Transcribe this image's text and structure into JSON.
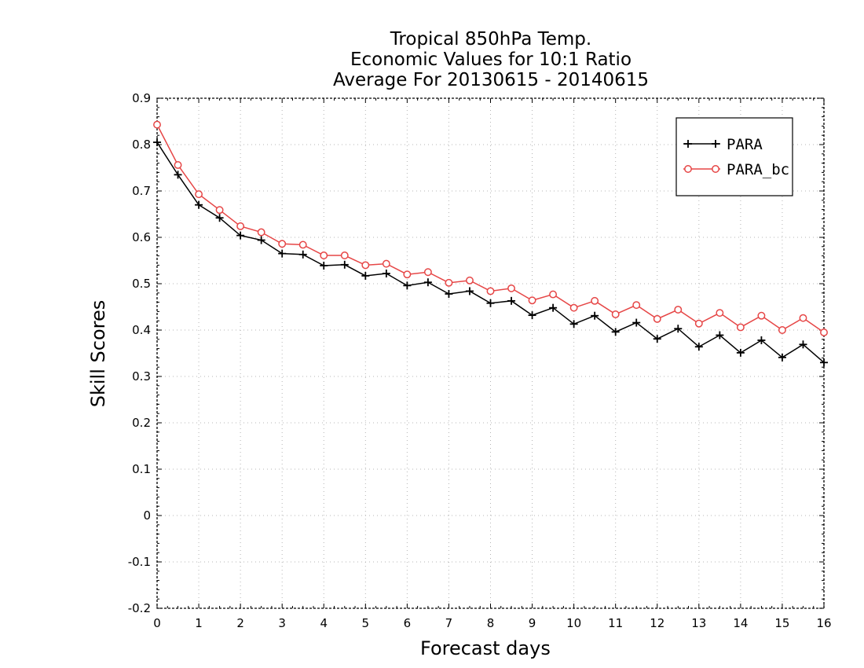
{
  "chart_data": {
    "type": "line",
    "title": [
      "Tropical 850hPa Temp.",
      "Economic Values for 10:1 Ratio",
      "Average For 20130615 - 20140615"
    ],
    "xlabel": "Forecast days",
    "ylabel": "Skill Scores",
    "xlim": [
      0,
      16
    ],
    "ylim": [
      -0.2,
      0.9
    ],
    "xticks": [
      0,
      1,
      2,
      3,
      4,
      5,
      6,
      7,
      8,
      9,
      10,
      11,
      12,
      13,
      14,
      15,
      16
    ],
    "xtick_labels": [
      "0",
      "1",
      "2",
      "3",
      "4",
      "5",
      "6",
      "7",
      "8",
      "9",
      "10",
      "11",
      "12",
      "13",
      "14",
      "15",
      "16"
    ],
    "yticks": [
      -0.2,
      -0.1,
      0,
      0.1,
      0.2,
      0.3,
      0.4,
      0.5,
      0.6,
      0.7,
      0.8,
      0.9
    ],
    "ytick_labels": [
      "-0.2",
      "-0.1",
      "0",
      "0.1",
      "0.2",
      "0.3",
      "0.4",
      "0.5",
      "0.6",
      "0.7",
      "0.8",
      "0.9"
    ],
    "grid": true,
    "legend_position": "top-right",
    "x": [
      0,
      0.5,
      1,
      1.5,
      2,
      2.5,
      3,
      3.5,
      4,
      4.5,
      5,
      5.5,
      6,
      6.5,
      7,
      7.5,
      8,
      8.5,
      9,
      9.5,
      10,
      10.5,
      11,
      11.5,
      12,
      12.5,
      13,
      13.5,
      14,
      14.5,
      15,
      15.5,
      16
    ],
    "series": [
      {
        "name": "PARA",
        "color": "#000000",
        "marker": "plus",
        "values": [
          0.805,
          0.735,
          0.67,
          0.642,
          0.604,
          0.594,
          0.565,
          0.563,
          0.539,
          0.541,
          0.517,
          0.522,
          0.496,
          0.503,
          0.478,
          0.484,
          0.458,
          0.463,
          0.432,
          0.448,
          0.413,
          0.431,
          0.396,
          0.416,
          0.381,
          0.403,
          0.364,
          0.389,
          0.351,
          0.378,
          0.341,
          0.369,
          0.33
        ]
      },
      {
        "name": "PARA_bc",
        "color": "#e64646",
        "marker": "circle",
        "values": [
          0.843,
          0.756,
          0.693,
          0.659,
          0.624,
          0.611,
          0.586,
          0.584,
          0.561,
          0.561,
          0.54,
          0.543,
          0.52,
          0.525,
          0.502,
          0.507,
          0.484,
          0.49,
          0.464,
          0.477,
          0.448,
          0.463,
          0.434,
          0.454,
          0.424,
          0.444,
          0.414,
          0.437,
          0.406,
          0.431,
          0.4,
          0.426,
          0.395
        ]
      }
    ]
  }
}
